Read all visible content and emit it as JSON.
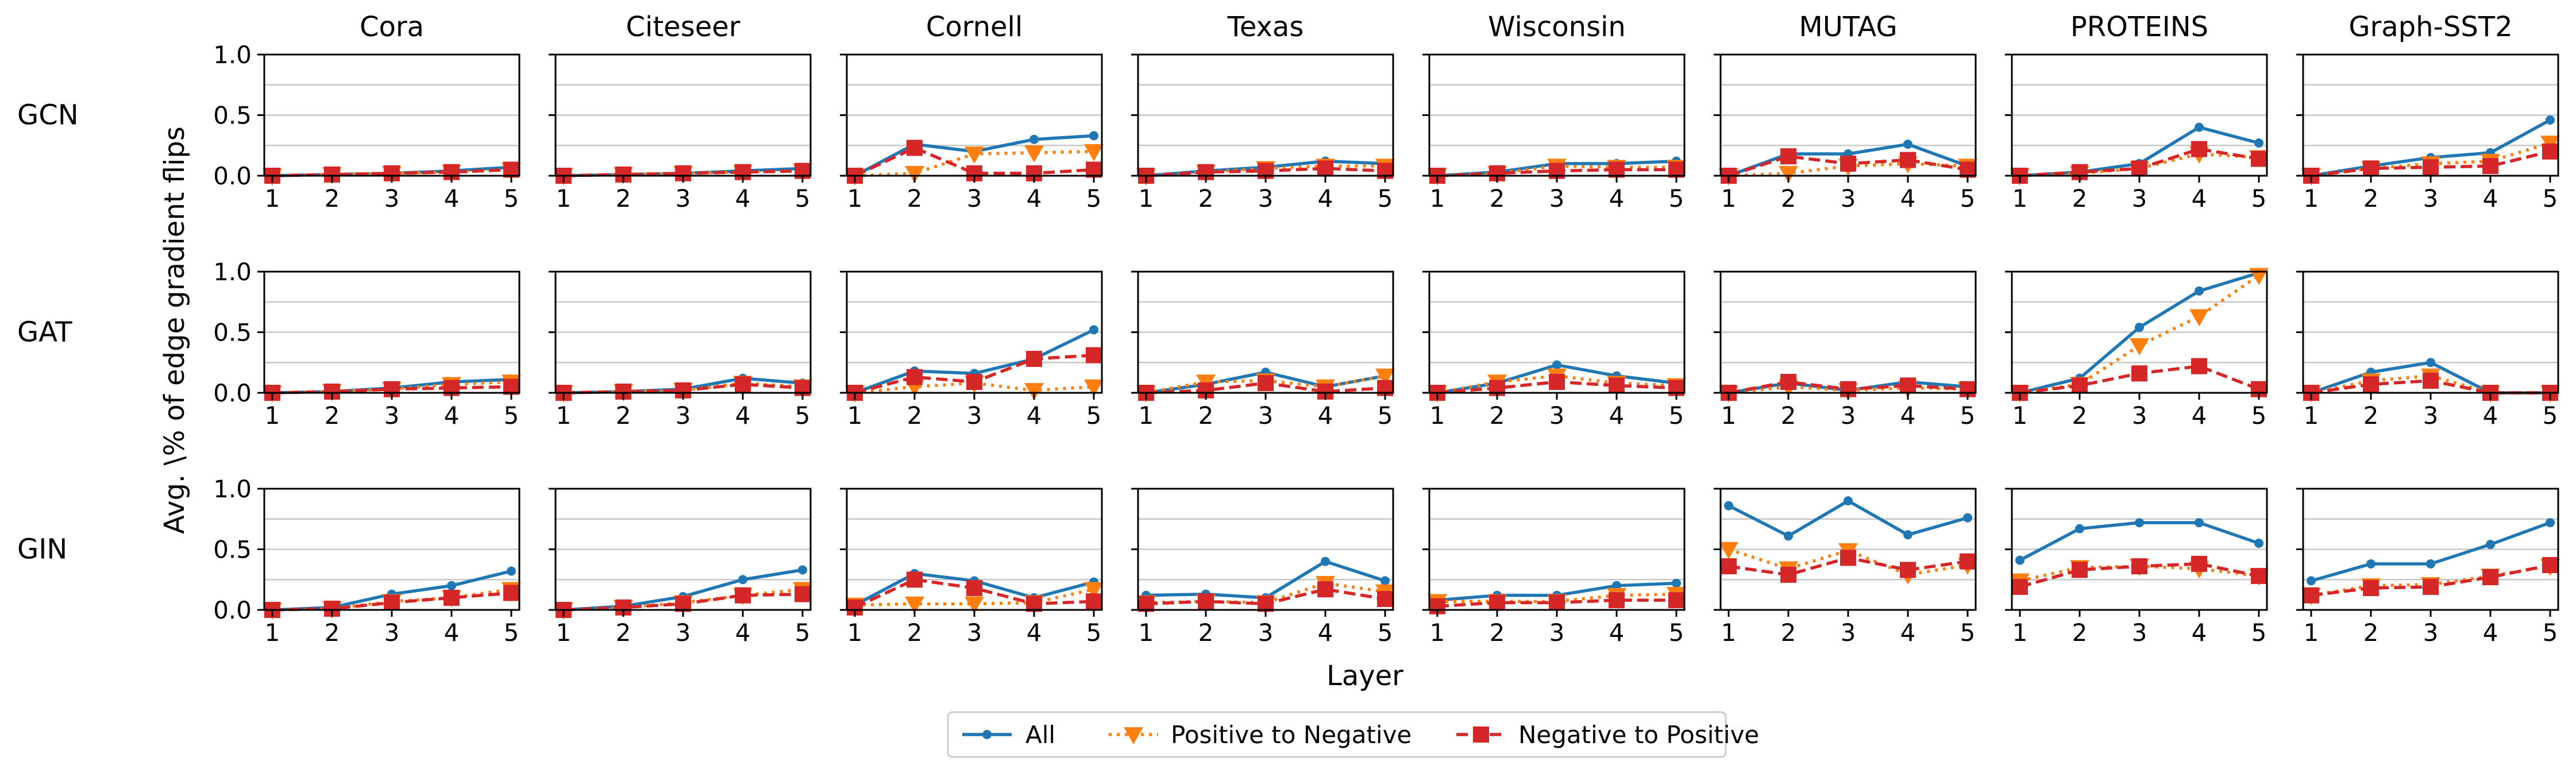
{
  "figure": {
    "xlabel": "Layer",
    "ylabel": "Avg. \\% of edge gradient flips",
    "datasets": [
      "Cora",
      "Citeseer",
      "Cornell",
      "Texas",
      "Wisconsin",
      "MUTAG",
      "PROTEINS",
      "Graph-SST2"
    ],
    "models": [
      "GCN",
      "GAT",
      "GIN"
    ],
    "legend_position": "bottom-center",
    "colors": {
      "All": "#1f77b4",
      "Positive to Negative": "#ff7f0e",
      "Negative to Positive": "#d62728"
    }
  },
  "chart_data": {
    "type": "line",
    "x": [
      1,
      2,
      3,
      4,
      5
    ],
    "xticks": [
      "1",
      "2",
      "3",
      "4",
      "5"
    ],
    "ylim": [
      0,
      1
    ],
    "yticks": [
      "0.0",
      "0.5",
      "1.0"
    ],
    "grid": "horizontal",
    "series_names": [
      "All",
      "Positive to Negative",
      "Negative to Positive"
    ],
    "panels": [
      {
        "model": "GCN",
        "dataset": "Cora",
        "series": [
          {
            "name": "All",
            "values": [
              0.0,
              0.01,
              0.02,
              0.04,
              0.07
            ]
          },
          {
            "name": "Positive to Negative",
            "values": [
              0.0,
              0.01,
              0.02,
              0.03,
              0.05
            ]
          },
          {
            "name": "Negative to Positive",
            "values": [
              0.0,
              0.01,
              0.02,
              0.03,
              0.05
            ]
          }
        ]
      },
      {
        "model": "GCN",
        "dataset": "Citeseer",
        "series": [
          {
            "name": "All",
            "values": [
              0.0,
              0.01,
              0.02,
              0.04,
              0.06
            ]
          },
          {
            "name": "Positive to Negative",
            "values": [
              0.0,
              0.01,
              0.02,
              0.03,
              0.04
            ]
          },
          {
            "name": "Negative to Positive",
            "values": [
              0.0,
              0.01,
              0.02,
              0.03,
              0.04
            ]
          }
        ]
      },
      {
        "model": "GCN",
        "dataset": "Cornell",
        "series": [
          {
            "name": "All",
            "values": [
              0.0,
              0.26,
              0.2,
              0.3,
              0.33
            ]
          },
          {
            "name": "Positive to Negative",
            "values": [
              0.0,
              0.02,
              0.18,
              0.19,
              0.2
            ]
          },
          {
            "name": "Negative to Positive",
            "values": [
              0.0,
              0.23,
              0.02,
              0.02,
              0.05
            ]
          }
        ]
      },
      {
        "model": "GCN",
        "dataset": "Texas",
        "series": [
          {
            "name": "All",
            "values": [
              0.0,
              0.04,
              0.07,
              0.12,
              0.1
            ]
          },
          {
            "name": "Positive to Negative",
            "values": [
              0.0,
              0.03,
              0.06,
              0.08,
              0.08
            ]
          },
          {
            "name": "Negative to Positive",
            "values": [
              0.0,
              0.03,
              0.04,
              0.06,
              0.04
            ]
          }
        ]
      },
      {
        "model": "GCN",
        "dataset": "Wisconsin",
        "series": [
          {
            "name": "All",
            "values": [
              0.0,
              0.03,
              0.1,
              0.1,
              0.12
            ]
          },
          {
            "name": "Positive to Negative",
            "values": [
              0.0,
              0.02,
              0.08,
              0.07,
              0.07
            ]
          },
          {
            "name": "Negative to Positive",
            "values": [
              0.0,
              0.02,
              0.04,
              0.05,
              0.05
            ]
          }
        ]
      },
      {
        "model": "GCN",
        "dataset": "MUTAG",
        "series": [
          {
            "name": "All",
            "values": [
              0.0,
              0.18,
              0.18,
              0.26,
              0.08
            ]
          },
          {
            "name": "Positive to Negative",
            "values": [
              0.0,
              0.02,
              0.08,
              0.1,
              0.08
            ]
          },
          {
            "name": "Negative to Positive",
            "values": [
              0.0,
              0.16,
              0.1,
              0.13,
              0.05
            ]
          }
        ]
      },
      {
        "model": "GCN",
        "dataset": "PROTEINS",
        "series": [
          {
            "name": "All",
            "values": [
              0.0,
              0.03,
              0.1,
              0.4,
              0.27
            ]
          },
          {
            "name": "Positive to Negative",
            "values": [
              0.0,
              0.02,
              0.06,
              0.18,
              0.15
            ]
          },
          {
            "name": "Negative to Positive",
            "values": [
              0.0,
              0.03,
              0.06,
              0.22,
              0.14
            ]
          }
        ]
      },
      {
        "model": "GCN",
        "dataset": "Graph-SST2",
        "series": [
          {
            "name": "All",
            "values": [
              0.0,
              0.08,
              0.15,
              0.19,
              0.46
            ]
          },
          {
            "name": "Positive to Negative",
            "values": [
              0.0,
              0.06,
              0.1,
              0.12,
              0.27
            ]
          },
          {
            "name": "Negative to Positive",
            "values": [
              0.0,
              0.06,
              0.07,
              0.08,
              0.2
            ]
          }
        ]
      },
      {
        "model": "GAT",
        "dataset": "Cora",
        "series": [
          {
            "name": "All",
            "values": [
              0.0,
              0.01,
              0.04,
              0.09,
              0.11
            ]
          },
          {
            "name": "Positive to Negative",
            "values": [
              0.0,
              0.01,
              0.03,
              0.07,
              0.09
            ]
          },
          {
            "name": "Negative to Positive",
            "values": [
              0.0,
              0.01,
              0.03,
              0.04,
              0.05
            ]
          }
        ]
      },
      {
        "model": "GAT",
        "dataset": "Citeseer",
        "series": [
          {
            "name": "All",
            "values": [
              0.0,
              0.01,
              0.03,
              0.12,
              0.08
            ]
          },
          {
            "name": "Positive to Negative",
            "values": [
              0.0,
              0.01,
              0.02,
              0.08,
              0.05
            ]
          },
          {
            "name": "Negative to Positive",
            "values": [
              0.0,
              0.01,
              0.02,
              0.07,
              0.04
            ]
          }
        ]
      },
      {
        "model": "GAT",
        "dataset": "Cornell",
        "series": [
          {
            "name": "All",
            "values": [
              0.0,
              0.18,
              0.16,
              0.28,
              0.52
            ]
          },
          {
            "name": "Positive to Negative",
            "values": [
              0.0,
              0.05,
              0.08,
              0.02,
              0.05
            ]
          },
          {
            "name": "Negative to Positive",
            "values": [
              0.0,
              0.13,
              0.09,
              0.28,
              0.31
            ]
          }
        ]
      },
      {
        "model": "GAT",
        "dataset": "Texas",
        "series": [
          {
            "name": "All",
            "values": [
              0.0,
              0.07,
              0.17,
              0.05,
              0.14
            ]
          },
          {
            "name": "Positive to Negative",
            "values": [
              0.0,
              0.09,
              0.1,
              0.05,
              0.14
            ]
          },
          {
            "name": "Negative to Positive",
            "values": [
              0.0,
              0.02,
              0.08,
              0.01,
              0.04
            ]
          }
        ]
      },
      {
        "model": "GAT",
        "dataset": "Wisconsin",
        "series": [
          {
            "name": "All",
            "values": [
              0.0,
              0.08,
              0.23,
              0.14,
              0.08
            ]
          },
          {
            "name": "Positive to Negative",
            "values": [
              0.0,
              0.09,
              0.14,
              0.08,
              0.06
            ]
          },
          {
            "name": "Negative to Positive",
            "values": [
              0.0,
              0.04,
              0.09,
              0.06,
              0.04
            ]
          }
        ]
      },
      {
        "model": "GAT",
        "dataset": "MUTAG",
        "series": [
          {
            "name": "All",
            "values": [
              0.0,
              0.08,
              0.02,
              0.09,
              0.05
            ]
          },
          {
            "name": "Positive to Negative",
            "values": [
              0.0,
              0.05,
              0.02,
              0.04,
              0.03
            ]
          },
          {
            "name": "Negative to Positive",
            "values": [
              0.0,
              0.09,
              0.03,
              0.06,
              0.03
            ]
          }
        ]
      },
      {
        "model": "GAT",
        "dataset": "PROTEINS",
        "series": [
          {
            "name": "All",
            "values": [
              0.0,
              0.12,
              0.54,
              0.84,
              0.99
            ]
          },
          {
            "name": "Positive to Negative",
            "values": [
              0.0,
              0.07,
              0.39,
              0.63,
              0.97
            ]
          },
          {
            "name": "Negative to Positive",
            "values": [
              0.0,
              0.06,
              0.16,
              0.22,
              0.03
            ]
          }
        ]
      },
      {
        "model": "GAT",
        "dataset": "Graph-SST2",
        "series": [
          {
            "name": "All",
            "values": [
              0.0,
              0.17,
              0.25,
              0.0,
              0.0
            ]
          },
          {
            "name": "Positive to Negative",
            "values": [
              0.0,
              0.1,
              0.14,
              0.0,
              0.0
            ]
          },
          {
            "name": "Negative to Positive",
            "values": [
              0.0,
              0.07,
              0.1,
              0.0,
              0.0
            ]
          }
        ]
      },
      {
        "model": "GIN",
        "dataset": "Cora",
        "series": [
          {
            "name": "All",
            "values": [
              0.0,
              0.02,
              0.13,
              0.2,
              0.32
            ]
          },
          {
            "name": "Positive to Negative",
            "values": [
              0.0,
              0.01,
              0.07,
              0.1,
              0.17
            ]
          },
          {
            "name": "Negative to Positive",
            "values": [
              0.0,
              0.01,
              0.06,
              0.1,
              0.14
            ]
          }
        ]
      },
      {
        "model": "GIN",
        "dataset": "Citeseer",
        "series": [
          {
            "name": "All",
            "values": [
              0.0,
              0.03,
              0.11,
              0.25,
              0.33
            ]
          },
          {
            "name": "Positive to Negative",
            "values": [
              0.0,
              0.02,
              0.06,
              0.12,
              0.17
            ]
          },
          {
            "name": "Negative to Positive",
            "values": [
              0.0,
              0.02,
              0.05,
              0.12,
              0.13
            ]
          }
        ]
      },
      {
        "model": "GIN",
        "dataset": "Cornell",
        "series": [
          {
            "name": "All",
            "values": [
              0.04,
              0.3,
              0.24,
              0.1,
              0.23
            ]
          },
          {
            "name": "Positive to Negative",
            "values": [
              0.04,
              0.05,
              0.05,
              0.06,
              0.17
            ]
          },
          {
            "name": "Negative to Positive",
            "values": [
              0.02,
              0.25,
              0.18,
              0.05,
              0.07
            ]
          }
        ]
      },
      {
        "model": "GIN",
        "dataset": "Texas",
        "series": [
          {
            "name": "All",
            "values": [
              0.12,
              0.13,
              0.1,
              0.4,
              0.24
            ]
          },
          {
            "name": "Positive to Negative",
            "values": [
              0.06,
              0.07,
              0.06,
              0.22,
              0.15
            ]
          },
          {
            "name": "Negative to Positive",
            "values": [
              0.05,
              0.07,
              0.05,
              0.17,
              0.09
            ]
          }
        ]
      },
      {
        "model": "GIN",
        "dataset": "Wisconsin",
        "series": [
          {
            "name": "All",
            "values": [
              0.08,
              0.12,
              0.12,
              0.2,
              0.22
            ]
          },
          {
            "name": "Positive to Negative",
            "values": [
              0.07,
              0.07,
              0.07,
              0.12,
              0.13
            ]
          },
          {
            "name": "Negative to Positive",
            "values": [
              0.03,
              0.06,
              0.06,
              0.08,
              0.08
            ]
          }
        ]
      },
      {
        "model": "GIN",
        "dataset": "MUTAG",
        "series": [
          {
            "name": "All",
            "values": [
              0.86,
              0.61,
              0.9,
              0.62,
              0.76
            ]
          },
          {
            "name": "Positive to Negative",
            "values": [
              0.5,
              0.34,
              0.49,
              0.29,
              0.37
            ]
          },
          {
            "name": "Negative to Positive",
            "values": [
              0.36,
              0.29,
              0.43,
              0.33,
              0.4
            ]
          }
        ]
      },
      {
        "model": "GIN",
        "dataset": "PROTEINS",
        "series": [
          {
            "name": "All",
            "values": [
              0.41,
              0.67,
              0.72,
              0.72,
              0.55
            ]
          },
          {
            "name": "Positive to Negative",
            "values": [
              0.24,
              0.35,
              0.36,
              0.34,
              0.28
            ]
          },
          {
            "name": "Negative to Positive",
            "values": [
              0.19,
              0.33,
              0.36,
              0.38,
              0.28
            ]
          }
        ]
      },
      {
        "model": "GIN",
        "dataset": "Graph-SST2",
        "series": [
          {
            "name": "All",
            "values": [
              0.24,
              0.38,
              0.38,
              0.54,
              0.72
            ]
          },
          {
            "name": "Positive to Negative",
            "values": [
              0.12,
              0.2,
              0.21,
              0.28,
              0.36
            ]
          },
          {
            "name": "Negative to Positive",
            "values": [
              0.12,
              0.18,
              0.19,
              0.27,
              0.37
            ]
          }
        ]
      }
    ]
  }
}
